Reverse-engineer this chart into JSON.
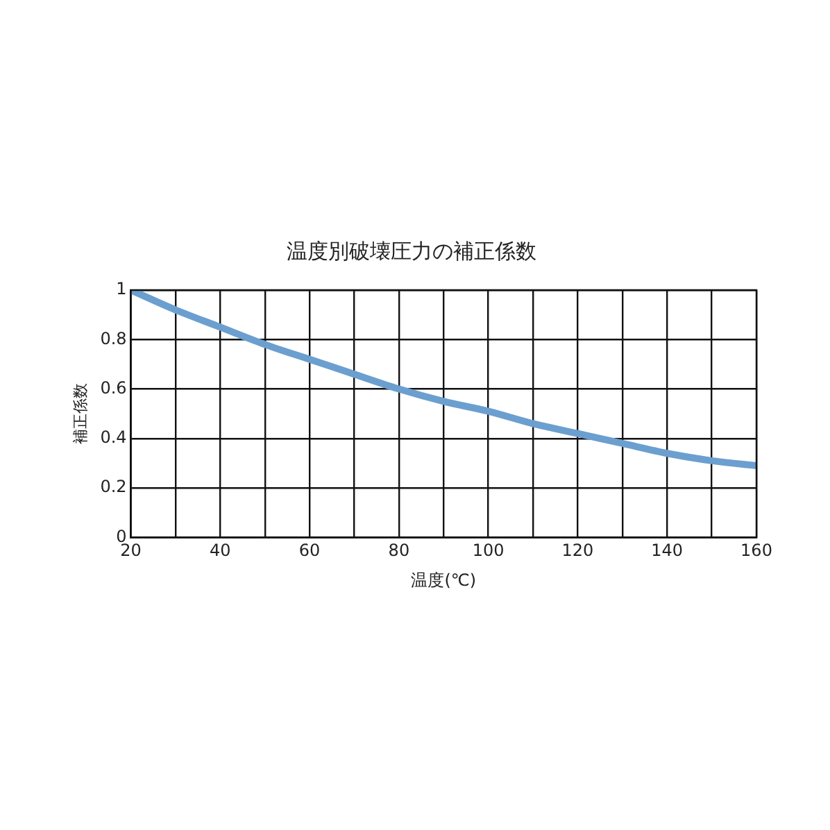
{
  "chart_data": {
    "type": "line",
    "title": "温度別破壊圧力の補正係数",
    "xlabel": "温度(℃)",
    "ylabel": "補正係数",
    "x": [
      20,
      30,
      40,
      50,
      60,
      70,
      80,
      90,
      100,
      110,
      120,
      130,
      140,
      150,
      160
    ],
    "series": [
      {
        "color": "#6b9fcf",
        "values": [
          1,
          0.92,
          0.85,
          0.78,
          0.72,
          0.66,
          0.6,
          0.55,
          0.51,
          0.46,
          0.42,
          0.38,
          0.34,
          0.31,
          0.29
        ]
      }
    ],
    "xlim": [
      20,
      160
    ],
    "xticks": [
      20,
      {
        "value": 30,
        "label": null
      },
      40,
      {
        "value": 50,
        "label": null
      },
      60,
      {
        "value": 70,
        "label": null
      },
      80,
      {
        "value": 90,
        "label": null
      },
      100,
      {
        "value": 110,
        "label": null
      },
      120,
      {
        "value": 130,
        "label": null
      },
      140,
      {
        "value": 150,
        "label": null
      },
      160
    ],
    "ylim": [
      0,
      1
    ],
    "yticks": [
      0,
      0.2,
      0.4,
      0.6,
      0.8,
      1
    ],
    "grid": true,
    "legend": false,
    "marker": "none",
    "line_style": "solid"
  }
}
